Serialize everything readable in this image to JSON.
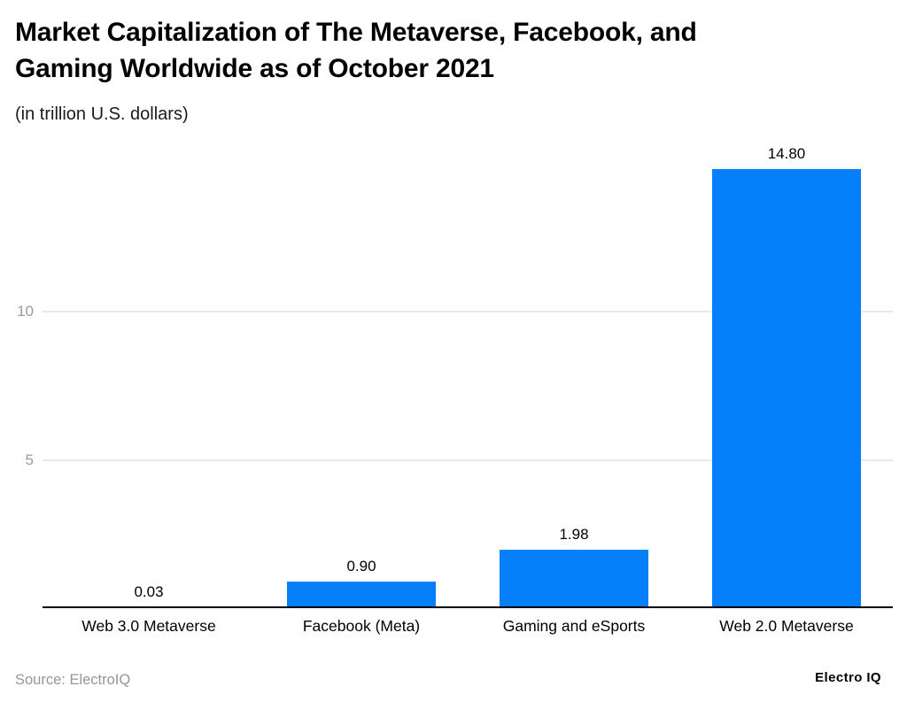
{
  "chart_data": {
    "type": "bar",
    "title": "Market Capitalization of The Metaverse, Facebook, and\nGaming Worldwide as of October 2021",
    "subtitle": "(in trillion U.S. dollars)",
    "categories": [
      "Web 3.0 Metaverse",
      "Facebook (Meta)",
      "Gaming and eSports",
      "Web 2.0 Metaverse"
    ],
    "values": [
      0.03,
      0.9,
      1.98,
      14.8
    ],
    "value_labels": [
      "0.03",
      "0.90",
      "1.98",
      "14.80"
    ],
    "xlabel": "",
    "ylabel": "",
    "yticks": [
      5,
      10
    ],
    "ylim": [
      0,
      14.8
    ],
    "grid": true,
    "legend": "none"
  },
  "colors": {
    "bar": "#0680FA",
    "gridline": "#E9E9E9",
    "tick_label": "#9B9B9B",
    "axis": "#000000"
  },
  "footer": {
    "source": "Source: ElectroIQ",
    "brand": "Electro IQ"
  }
}
